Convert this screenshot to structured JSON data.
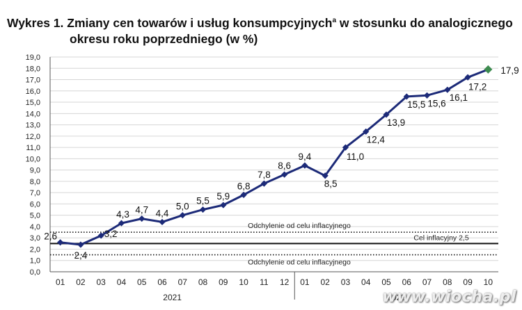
{
  "header": {
    "title_line1": "Wykres 1. Zmiany cen towarów i usług konsumpcyjnych",
    "title_sup": "a",
    "title_line1_rest": " w stosunku do analogicznego",
    "title_line2": "okresu roku poprzedniego (w %)"
  },
  "watermark": "www.wiocha.pl",
  "colors": {
    "line": "#1c2a78",
    "last_marker": "#3d8b4f",
    "reference_line": "#111111"
  },
  "chart_data": {
    "type": "line",
    "x": [
      "01",
      "02",
      "03",
      "04",
      "05",
      "06",
      "07",
      "08",
      "09",
      "10",
      "11",
      "12",
      "01",
      "02",
      "03",
      "04",
      "05",
      "06",
      "07",
      "08",
      "09",
      "10"
    ],
    "year_labels": [
      {
        "label": "2021",
        "start_index": 0,
        "end_index": 11
      },
      {
        "label": "2022",
        "start_index": 12,
        "end_index": 21
      }
    ],
    "series": [
      {
        "values": [
          2.6,
          2.4,
          3.2,
          4.3,
          4.7,
          4.4,
          5.0,
          5.5,
          5.9,
          6.8,
          7.8,
          8.6,
          9.4,
          8.5,
          11.0,
          12.4,
          13.9,
          15.5,
          15.6,
          16.1,
          17.2,
          17.9
        ],
        "data_labels": [
          "2,6",
          "2,4",
          "3,2",
          "4,3",
          "4,7",
          "4,4",
          "5,0",
          "5,5",
          "5,9",
          "6,8",
          "7,8",
          "8,6",
          "9,4",
          "8,5",
          "11,0",
          "12,4",
          "13,9",
          "15,5",
          "15,6",
          "16,1",
          "17,2",
          "17,9"
        ]
      }
    ],
    "ylim": [
      0,
      19
    ],
    "ytick_step": 1,
    "ytick_labels": [
      "0,0",
      "1,0",
      "2,0",
      "3,0",
      "4,0",
      "5,0",
      "6,0",
      "7,0",
      "8,0",
      "9,0",
      "10,0",
      "11,0",
      "12,0",
      "13,0",
      "14,0",
      "15,0",
      "16,0",
      "17,0",
      "18,0",
      "19,0"
    ],
    "grid": "horizontal",
    "reference_lines": [
      {
        "value": 3.5,
        "style": "dotted",
        "label": "Odchylenie od celu inflacyjnego"
      },
      {
        "value": 2.5,
        "style": "solid",
        "label": "Cel inflacyjny 2,5"
      },
      {
        "value": 1.5,
        "style": "dotted",
        "label": "Odchylenie od celu inflacyjnego"
      }
    ]
  }
}
